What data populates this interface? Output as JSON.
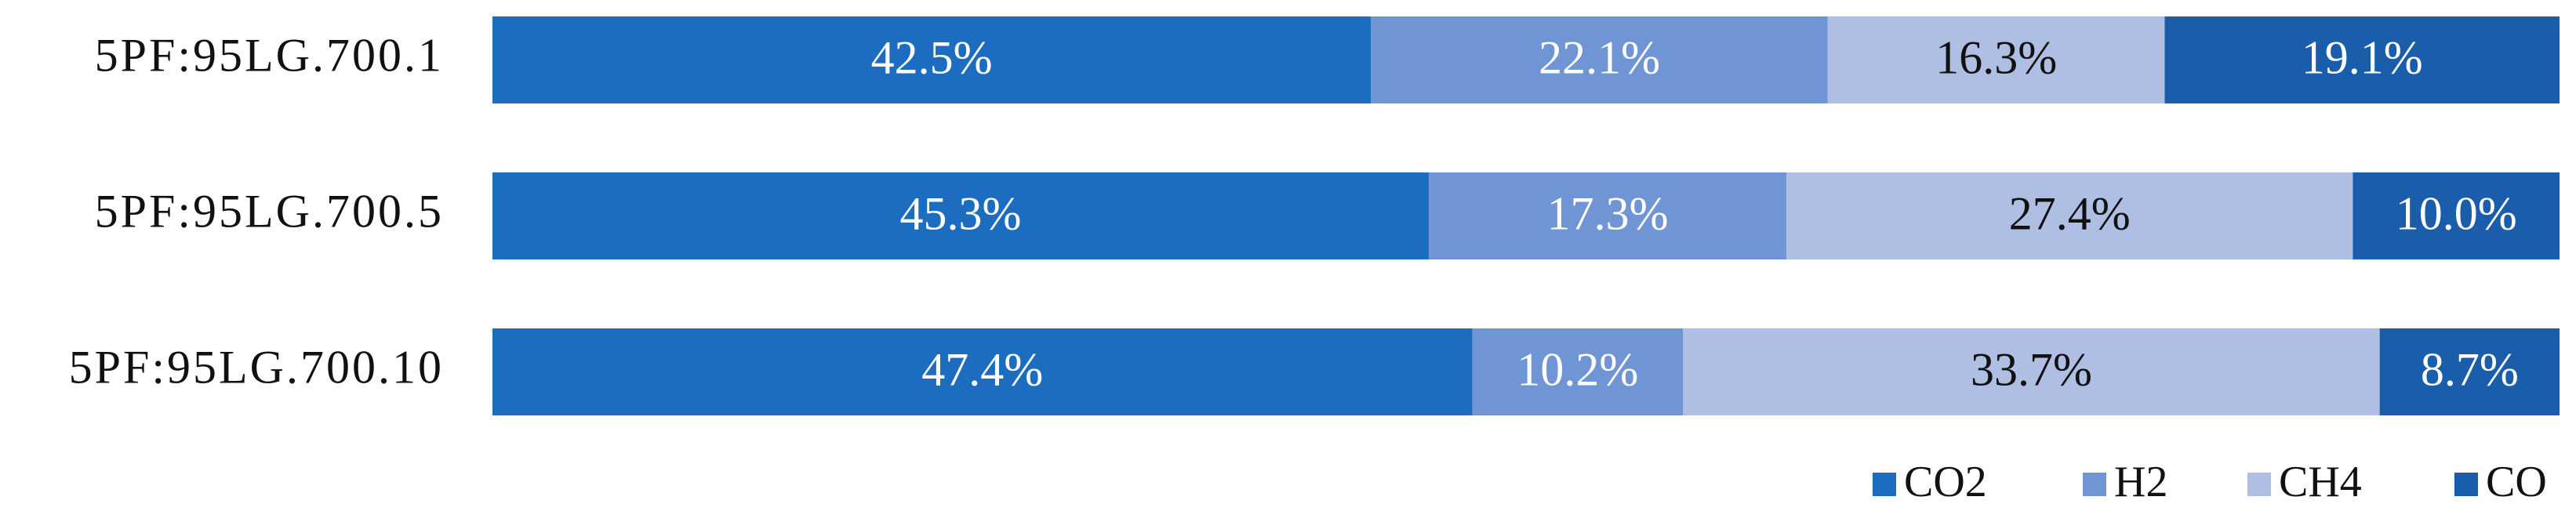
{
  "chart_data": {
    "type": "stacked-bar-horizontal",
    "categories": [
      "5PF:95LG.700.1",
      "5PF:95LG.700.5",
      "5PF:95LG.700.10"
    ],
    "xlim": [
      0,
      100
    ],
    "legend": "bottom-right",
    "series": [
      {
        "name": "CO2",
        "color": "#1c6cc0",
        "values": [
          42.5,
          45.3,
          47.4
        ],
        "value_labels": [
          "42.5%",
          "45.3%",
          "47.4%"
        ]
      },
      {
        "name": "H2",
        "color": "#7095d5",
        "values": [
          22.1,
          17.3,
          10.2
        ],
        "value_labels": [
          "22.1%",
          "17.3%",
          "10.2%"
        ]
      },
      {
        "name": "CH4",
        "color": "#afbfe3",
        "values": [
          16.3,
          27.4,
          33.7
        ],
        "value_labels": [
          "16.3%",
          "27.4%",
          "33.7%"
        ]
      },
      {
        "name": "CO",
        "color": "#1a5eab",
        "values": [
          19.1,
          10.0,
          8.7
        ],
        "value_labels": [
          "19.1%",
          "10.0%",
          "8.7%"
        ]
      }
    ]
  }
}
